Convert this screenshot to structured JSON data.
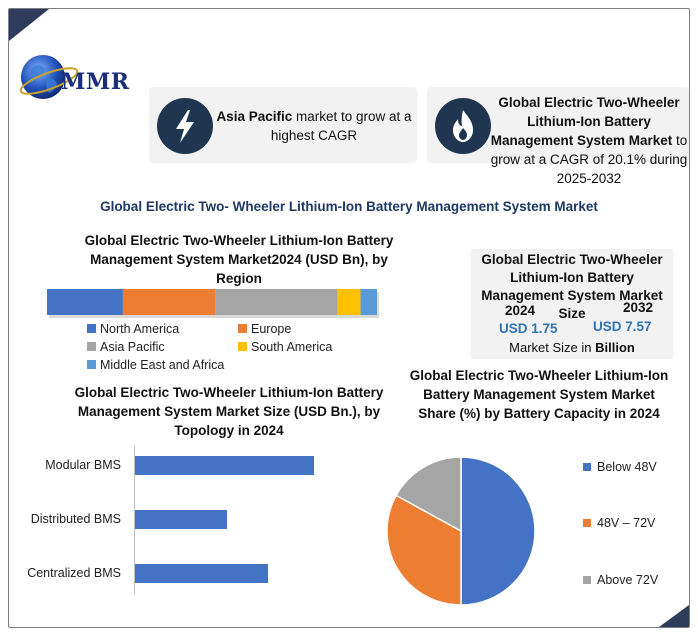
{
  "brand": {
    "name": "MMR"
  },
  "highlights": [
    {
      "bold": "Asia Pacific",
      "text": " market to grow at a highest CAGR",
      "icon": "lightning-icon"
    },
    {
      "bold": "Global Electric Two-Wheeler Lithium-Ion Battery Management System Market",
      "text": " to grow at a CAGR of 20.1% during 2025-2032",
      "icon": "flame-icon"
    }
  ],
  "main_title": "Global Electric Two- Wheeler Lithium-Ion Battery Management System Market",
  "market_size": {
    "title": "Global Electric Two-Wheeler Lithium-Ion Battery Management System Market Size",
    "year_a": "2024",
    "value_a": "USD 1.75",
    "year_b": "2032",
    "value_b": "USD 7.57",
    "unit_prefix": "Market Size in ",
    "unit_bold": "Billion"
  },
  "colors": {
    "blue": "#4472c4",
    "orange": "#ed7d31",
    "gray": "#a5a5a5",
    "yellow": "#ffc000",
    "lightblue": "#5b9bd5",
    "navy": "#1f3864"
  },
  "chart_data": [
    {
      "type": "bar",
      "orientation": "stacked-horizontal",
      "title": "Global Electric Two-Wheeler Lithium-Ion Battery Management System Market2024 (USD Bn), by Region",
      "series": [
        {
          "name": "North America",
          "values": [
            23
          ],
          "color": "#4472c4"
        },
        {
          "name": "Europe",
          "values": [
            28
          ],
          "color": "#ed7d31"
        },
        {
          "name": "Asia Pacific",
          "values": [
            37
          ],
          "color": "#a5a5a5"
        },
        {
          "name": "South America",
          "values": [
            7
          ],
          "color": "#ffc000"
        },
        {
          "name": "Middle East and Africa",
          "values": [
            5
          ],
          "color": "#5b9bd5"
        }
      ],
      "legend": "bottom"
    },
    {
      "type": "bar",
      "orientation": "horizontal",
      "title": "Global Electric Two-Wheeler Lithium-Ion Battery Management System Market Size (USD Bn.), by Topology in 2024",
      "categories": [
        "Modular BMS",
        "Distributed BMS",
        "Centralized BMS"
      ],
      "values": [
        0.78,
        0.4,
        0.58
      ],
      "xlim": [
        0,
        0.9
      ],
      "color": "#4472c4"
    },
    {
      "type": "pie",
      "title": "Global Electric Two-Wheeler Lithium-Ion Battery Management System Market Share (%) by Battery Capacity in 2024",
      "categories": [
        "Below 48V",
        "48V – 72V",
        "Above 72V"
      ],
      "values": [
        50,
        33,
        17
      ],
      "colors": [
        "#4472c4",
        "#ed7d31",
        "#a5a5a5"
      ],
      "legend": "right"
    }
  ]
}
